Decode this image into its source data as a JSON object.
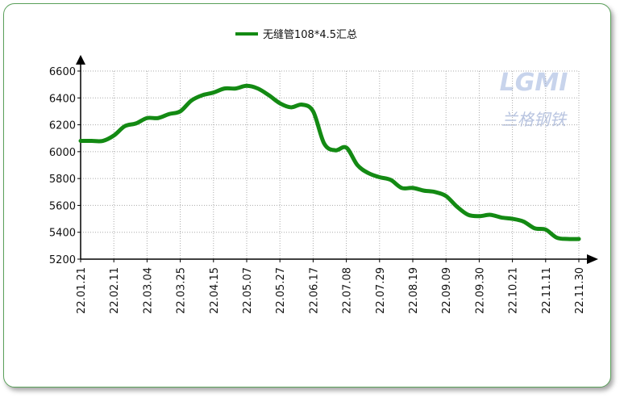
{
  "chart_data": {
    "type": "line",
    "logo": {
      "text": "LGMI",
      "subtext": "兰格钢铁"
    },
    "categories": [
      "22.01.21",
      null,
      null,
      "22.02.11",
      null,
      null,
      "22.03.04",
      null,
      null,
      "22.03.25",
      null,
      null,
      "22.04.15",
      null,
      null,
      "22.05.07",
      null,
      null,
      "22.05.27",
      null,
      null,
      "22.06.17",
      null,
      null,
      "22.07.08",
      null,
      null,
      "22.07.29",
      null,
      null,
      "22.08.19",
      null,
      null,
      "22.09.09",
      null,
      null,
      "22.09.30",
      null,
      null,
      "22.10.21",
      null,
      null,
      "22.11.11",
      null,
      null,
      "22.11.30"
    ],
    "series": [
      {
        "name": "无缝管108*4.5汇总",
        "color": "#138a13",
        "values": [
          6080,
          6080,
          6080,
          6120,
          6190,
          6210,
          6250,
          6250,
          6280,
          6300,
          6380,
          6420,
          6440,
          6470,
          6470,
          6490,
          6470,
          6420,
          6360,
          6330,
          6350,
          6300,
          6060,
          6010,
          6030,
          5900,
          5840,
          5810,
          5790,
          5730,
          5730,
          5710,
          5700,
          5670,
          5590,
          5530,
          5520,
          5530,
          5510,
          5500,
          5480,
          5430,
          5420,
          5360,
          5350,
          5350
        ]
      }
    ],
    "ylim": [
      5200,
      6600
    ],
    "yticks": [
      5200,
      5400,
      5600,
      5800,
      6000,
      6200,
      6400,
      6600
    ],
    "grid": true,
    "legend": "top"
  }
}
